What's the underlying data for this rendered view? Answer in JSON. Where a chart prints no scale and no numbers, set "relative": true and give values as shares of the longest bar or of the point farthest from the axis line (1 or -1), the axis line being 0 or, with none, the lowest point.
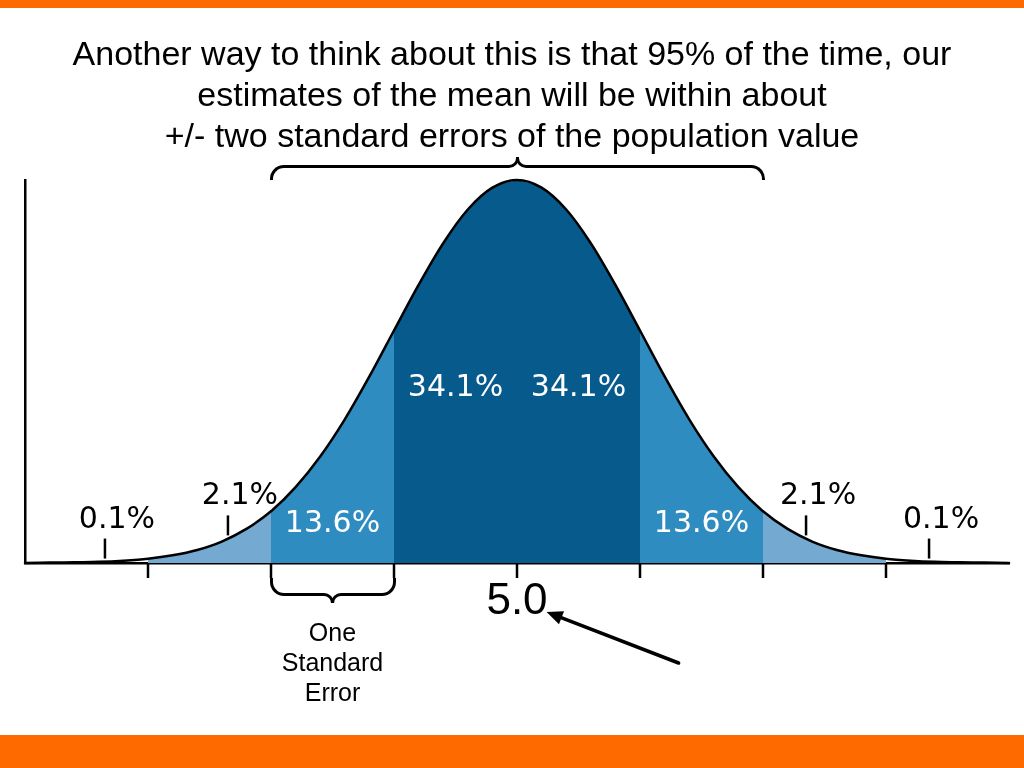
{
  "chart_data": {
    "type": "area",
    "title": "Another way to think about this is that 95% of the time, our\nestimates of the mean will be within about\n+/- two standard errors of the population value",
    "categories": [
      null,
      null,
      null,
      null,
      null,
      null,
      null,
      null,
      null,
      null,
      null,
      null,
      null,
      null,
      null,
      null,
      null,
      null,
      null,
      null,
      null,
      null,
      null,
      null,
      null,
      null,
      null,
      null,
      null,
      null,
      null,
      null,
      null,
      null,
      null,
      null,
      null,
      null,
      null,
      null,
      null
    ],
    "relative": true,
    "series": [
      {
        "color": "#74a9d2",
        "values": [
          null,
          null,
          null,
          null,
          null,
          0.011,
          0.02,
          0.034,
          0.056,
          0.089,
          0.135,
          null,
          null,
          null,
          null,
          null,
          null,
          null,
          null,
          null,
          null,
          null,
          null,
          null,
          null,
          null,
          null,
          null,
          null,
          null,
          null,
          null,
          null,
          null,
          null,
          null,
          null,
          null,
          null,
          null,
          null
        ]
      },
      {
        "color": "#2e8cc0",
        "values": [
          null,
          null,
          null,
          null,
          null,
          null,
          null,
          null,
          null,
          null,
          0.135,
          0.198,
          0.278,
          0.375,
          0.487,
          0.607,
          null,
          null,
          null,
          null,
          null,
          null,
          null,
          null,
          null,
          null,
          null,
          null,
          null,
          null,
          null,
          null,
          null,
          null,
          null,
          null,
          null,
          null,
          null,
          null,
          null
        ]
      },
      {
        "color": "#065a8c",
        "values": [
          null,
          null,
          null,
          null,
          null,
          null,
          null,
          null,
          null,
          null,
          null,
          null,
          null,
          null,
          null,
          0.607,
          0.726,
          0.835,
          0.923,
          0.98,
          1,
          null,
          null,
          null,
          null,
          null,
          null,
          null,
          null,
          null,
          null,
          null,
          null,
          null,
          null,
          null,
          null,
          null,
          null,
          null,
          null
        ]
      },
      {
        "color": "#065a8c",
        "values": [
          null,
          null,
          null,
          null,
          null,
          null,
          null,
          null,
          null,
          null,
          null,
          null,
          null,
          null,
          null,
          null,
          null,
          null,
          null,
          null,
          1,
          0.98,
          0.923,
          0.835,
          0.726,
          0.607,
          null,
          null,
          null,
          null,
          null,
          null,
          null,
          null,
          null,
          null,
          null,
          null,
          null,
          null,
          null
        ]
      },
      {
        "color": "#2e8cc0",
        "values": [
          null,
          null,
          null,
          null,
          null,
          null,
          null,
          null,
          null,
          null,
          null,
          null,
          null,
          null,
          null,
          null,
          null,
          null,
          null,
          null,
          null,
          null,
          null,
          null,
          null,
          0.607,
          0.487,
          0.375,
          0.278,
          0.198,
          0.135,
          null,
          null,
          null,
          null,
          null,
          null,
          null,
          null,
          null,
          null
        ]
      },
      {
        "color": "#74a9d2",
        "values": [
          null,
          null,
          null,
          null,
          null,
          null,
          null,
          null,
          null,
          null,
          null,
          null,
          null,
          null,
          null,
          null,
          null,
          null,
          null,
          null,
          null,
          null,
          null,
          null,
          null,
          null,
          null,
          null,
          null,
          null,
          0.135,
          0.089,
          0.056,
          0.034,
          0.02,
          0.011,
          null,
          null,
          null,
          null,
          null
        ]
      },
      {
        "type": "line",
        "color": "#000000",
        "values": [
          0,
          0.001,
          0.002,
          0.003,
          0.006,
          0.011,
          0.02,
          0.034,
          0.056,
          0.089,
          0.135,
          0.198,
          0.278,
          0.375,
          0.487,
          0.607,
          0.726,
          0.835,
          0.923,
          0.98,
          1,
          0.98,
          0.923,
          0.835,
          0.726,
          0.607,
          0.487,
          0.375,
          0.278,
          0.198,
          0.135,
          0.089,
          0.056,
          0.034,
          0.02,
          0.011,
          0.006,
          0.003,
          0.002,
          0.001,
          0
        ]
      }
    ],
    "annotations": [
      "0.1%",
      "2.1%",
      "13.6%",
      "34.1%",
      "34.1%",
      "13.6%",
      "2.1%",
      "0.1%",
      "5.0",
      "One Standard Error"
    ]
  }
}
